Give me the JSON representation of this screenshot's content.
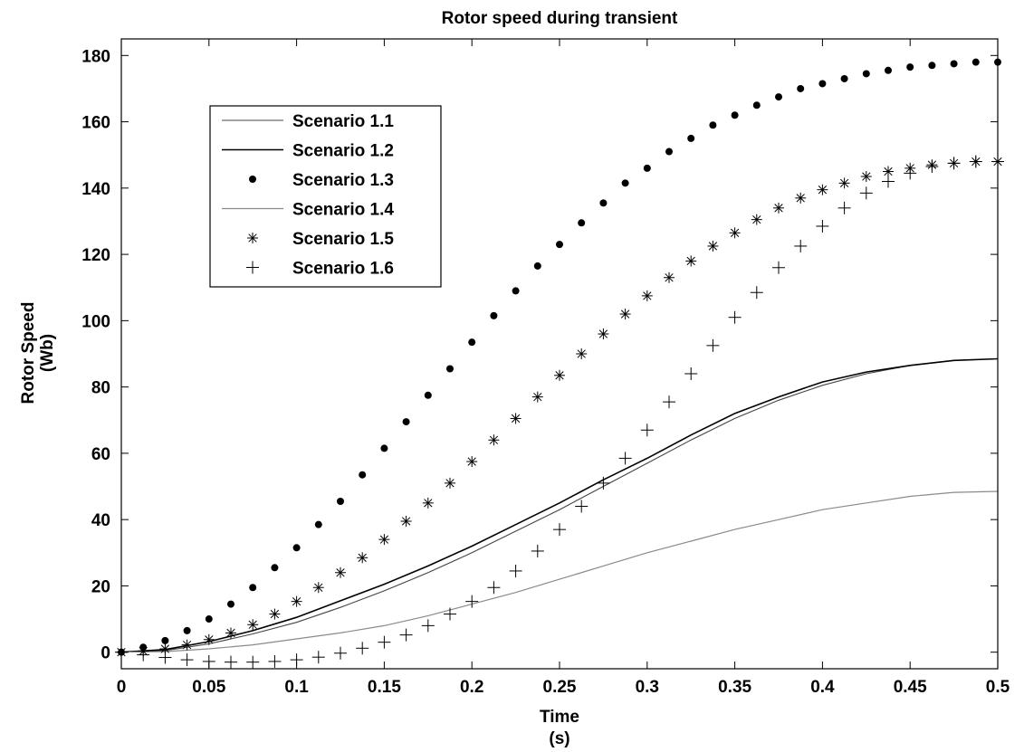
{
  "chart_data": {
    "type": "line",
    "title": "Rotor speed during transient",
    "xlabel": [
      "Time",
      "(s)"
    ],
    "ylabel": [
      "Rotor Speed",
      "(Wb)"
    ],
    "xlim": [
      0,
      0.5
    ],
    "ylim": [
      -5,
      185
    ],
    "x_ticks": [
      0,
      0.05,
      0.1,
      0.15,
      0.2,
      0.25,
      0.3,
      0.35,
      0.4,
      0.45,
      0.5
    ],
    "x_tick_labels": [
      "0",
      "0.05",
      "0.1",
      "0.15",
      "0.2",
      "0.25",
      "0.3",
      "0.35",
      "0.4",
      "0.45",
      "0.5"
    ],
    "y_ticks": [
      0,
      20,
      40,
      60,
      80,
      100,
      120,
      140,
      160,
      180
    ],
    "y_tick_labels": [
      "0",
      "20",
      "40",
      "60",
      "80",
      "100",
      "120",
      "140",
      "160",
      "180"
    ],
    "grid": false,
    "legend_position": "upper-left",
    "color": "#000000",
    "series": [
      {
        "name": "Scenario 1.1",
        "style": "line-thin",
        "x": [
          0,
          0.025,
          0.05,
          0.075,
          0.1,
          0.125,
          0.15,
          0.175,
          0.2,
          0.225,
          0.25,
          0.275,
          0.3,
          0.325,
          0.35,
          0.375,
          0.4,
          0.425,
          0.45,
          0.475,
          0.5
        ],
        "y": [
          0,
          0.5,
          2.5,
          5.5,
          9,
          13.5,
          18.5,
          24,
          30,
          36.5,
          43,
          50,
          57,
          64,
          70.5,
          76,
          80.5,
          84,
          86.5,
          88,
          88.5
        ]
      },
      {
        "name": "Scenario 1.2",
        "style": "line-thick",
        "x": [
          0,
          0.025,
          0.05,
          0.075,
          0.1,
          0.125,
          0.15,
          0.175,
          0.2,
          0.225,
          0.25,
          0.275,
          0.3,
          0.325,
          0.35,
          0.375,
          0.4,
          0.425,
          0.45,
          0.475,
          0.5
        ],
        "y": [
          0,
          0.8,
          3.2,
          6.5,
          10.5,
          15.5,
          20.5,
          26,
          32,
          38.5,
          45,
          52,
          58.5,
          65.5,
          72,
          77,
          81.5,
          84.5,
          86.5,
          88,
          88.5
        ]
      },
      {
        "name": "Scenario 1.3",
        "style": "dot",
        "x": [
          0,
          0.0125,
          0.025,
          0.0375,
          0.05,
          0.0625,
          0.075,
          0.0875,
          0.1,
          0.1125,
          0.125,
          0.1375,
          0.15,
          0.1625,
          0.175,
          0.1875,
          0.2,
          0.2125,
          0.225,
          0.2375,
          0.25,
          0.2625,
          0.275,
          0.2875,
          0.3,
          0.3125,
          0.325,
          0.3375,
          0.35,
          0.3625,
          0.375,
          0.3875,
          0.4,
          0.4125,
          0.425,
          0.4375,
          0.45,
          0.4625,
          0.475,
          0.4875,
          0.5
        ],
        "y": [
          0,
          1.5,
          3.5,
          6.5,
          10,
          14.5,
          19.5,
          25.5,
          31.5,
          38.5,
          45.5,
          53.5,
          61.5,
          69.5,
          77.5,
          85.5,
          93.5,
          101.5,
          109,
          116.5,
          123,
          129.5,
          135.5,
          141.5,
          146,
          151,
          155,
          159,
          162,
          165,
          167.5,
          170,
          171.5,
          173,
          174.5,
          175.5,
          176.5,
          177,
          177.5,
          178,
          178
        ]
      },
      {
        "name": "Scenario 1.4",
        "style": "line-gray",
        "x": [
          0,
          0.025,
          0.05,
          0.075,
          0.1,
          0.125,
          0.15,
          0.175,
          0.2,
          0.225,
          0.25,
          0.275,
          0.3,
          0.325,
          0.35,
          0.375,
          0.4,
          0.425,
          0.45,
          0.475,
          0.5
        ],
        "y": [
          0,
          0.2,
          1,
          2.2,
          4,
          5.8,
          8,
          11,
          14.5,
          18,
          22,
          26,
          30,
          33.5,
          37,
          40,
          43,
          45,
          47,
          48.2,
          48.5
        ]
      },
      {
        "name": "Scenario 1.5",
        "style": "star",
        "x": [
          0,
          0.0125,
          0.025,
          0.0375,
          0.05,
          0.0625,
          0.075,
          0.0875,
          0.1,
          0.1125,
          0.125,
          0.1375,
          0.15,
          0.1625,
          0.175,
          0.1875,
          0.2,
          0.2125,
          0.225,
          0.2375,
          0.25,
          0.2625,
          0.275,
          0.2875,
          0.3,
          0.3125,
          0.325,
          0.3375,
          0.35,
          0.3625,
          0.375,
          0.3875,
          0.4,
          0.4125,
          0.425,
          0.4375,
          0.45,
          0.4625,
          0.475,
          0.4875,
          0.5
        ],
        "y": [
          0,
          0.3,
          1,
          2.2,
          3.8,
          5.8,
          8.3,
          11.5,
          15.3,
          19.5,
          24,
          28.5,
          34,
          39.5,
          45,
          51,
          57.5,
          64,
          70.5,
          77,
          83.5,
          90,
          96,
          102,
          107.5,
          113,
          118,
          122.5,
          126.5,
          130.5,
          134,
          137,
          139.5,
          141.5,
          143.5,
          145,
          146,
          147,
          147.5,
          148,
          148
        ]
      },
      {
        "name": "Scenario 1.6",
        "style": "plus",
        "x": [
          0,
          0.0125,
          0.025,
          0.0375,
          0.05,
          0.0625,
          0.075,
          0.0875,
          0.1,
          0.1125,
          0.125,
          0.1375,
          0.15,
          0.1625,
          0.175,
          0.1875,
          0.2,
          0.2125,
          0.225,
          0.2375,
          0.25,
          0.2625,
          0.275,
          0.2875,
          0.3,
          0.3125,
          0.325,
          0.3375,
          0.35,
          0.3625,
          0.375,
          0.3875,
          0.4,
          0.4125,
          0.425,
          0.4375,
          0.45,
          0.4625,
          0.475,
          0.4875,
          0.5
        ],
        "y": [
          0,
          -0.8,
          -1.6,
          -2.3,
          -2.8,
          -3,
          -3,
          -2.8,
          -2.3,
          -1.5,
          -0.3,
          1.2,
          3,
          5.2,
          8,
          11.5,
          15.3,
          19.5,
          24.5,
          30.5,
          37,
          44,
          51,
          58.5,
          67,
          75.5,
          84,
          92.5,
          101,
          108.5,
          116,
          122.5,
          128.5,
          134,
          138.5,
          142,
          144.5,
          146.5,
          147.5,
          148,
          148
        ]
      }
    ]
  }
}
